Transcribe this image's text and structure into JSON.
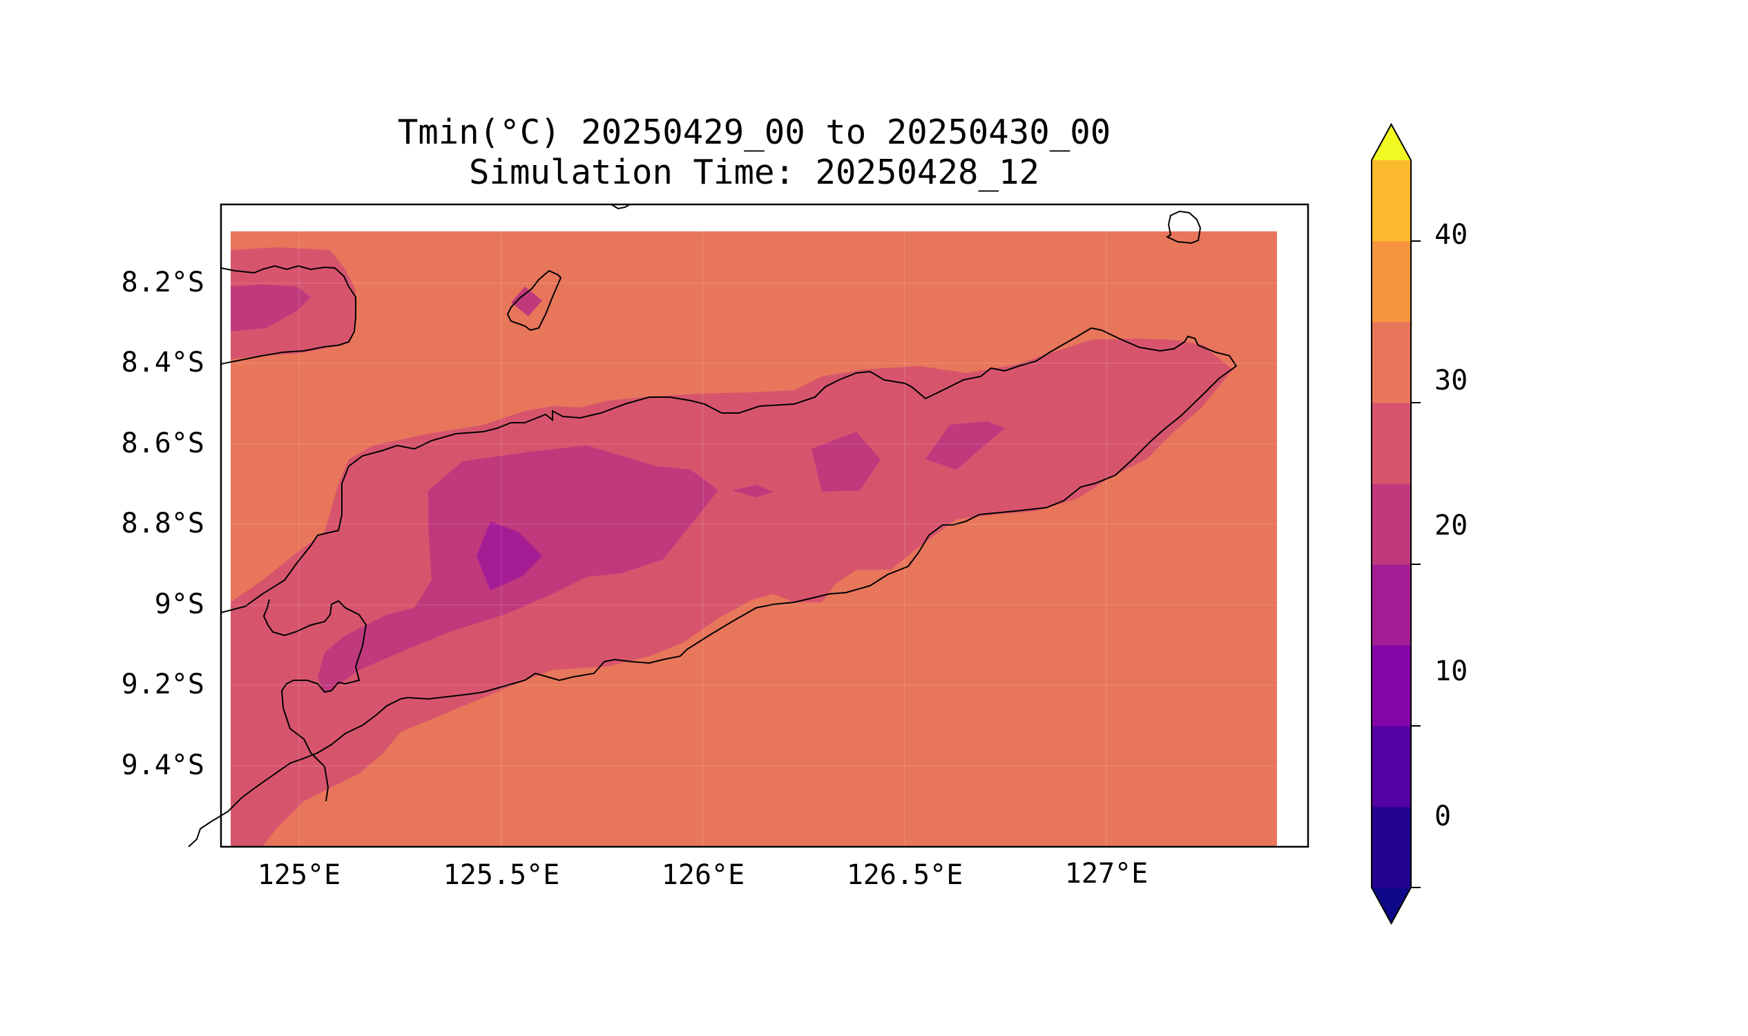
{
  "title": {
    "line1": "Tmin(°C) 20250429_00 to 20250430_00",
    "line2": "Simulation Time: 20250428_12"
  },
  "x_ticks": [
    "125°E",
    "125.5°E",
    "126°E",
    "126.5°E",
    "127°E"
  ],
  "y_ticks": [
    "8.2°S",
    "8.4°S",
    "8.6°S",
    "8.8°S",
    "9°S",
    "9.2°S",
    "9.4°S"
  ],
  "colorbar": {
    "ticks": [
      "0",
      "10",
      "20",
      "30",
      "40"
    ],
    "levels": [
      -5,
      0,
      5,
      10,
      15,
      20,
      25,
      30,
      35,
      40,
      45
    ],
    "colors": [
      "#0d0887",
      "#22038f",
      "#5402a3",
      "#8305a7",
      "#a51d94",
      "#c0397d",
      "#d6556d",
      "#e8765b",
      "#f6953e",
      "#fcba2e",
      "#f0f921"
    ],
    "extend": "both"
  },
  "map": {
    "lon_range": [
      124.8,
      127.5
    ],
    "lat_range": [
      -9.6,
      -8.0
    ],
    "ocean_color": "#e8765b",
    "land_color_warm": "#d6556d",
    "land_color_mid": "#c0397d",
    "land_color_cool": "#a51d94",
    "coastline_color": "#000000"
  }
}
